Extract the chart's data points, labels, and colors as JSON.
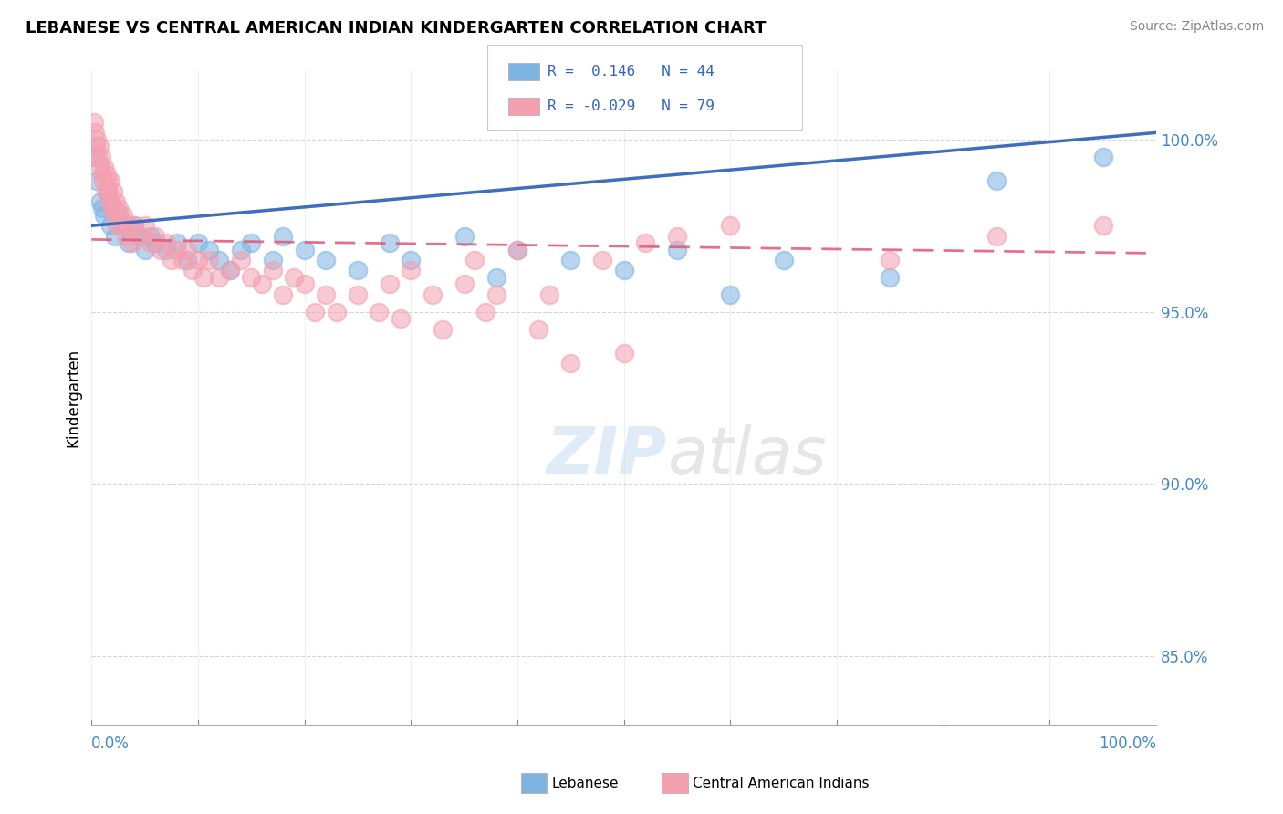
{
  "title": "LEBANESE VS CENTRAL AMERICAN INDIAN KINDERGARTEN CORRELATION CHART",
  "source": "Source: ZipAtlas.com",
  "ylabel": "Kindergarten",
  "legend_labels": [
    "Lebanese",
    "Central American Indians"
  ],
  "r_lebanese": 0.146,
  "n_lebanese": 44,
  "r_central": -0.029,
  "n_central": 79,
  "blue_color": "#7EB4E2",
  "pink_color": "#F4A0B0",
  "trend_blue_color": "#3366BB",
  "trend_pink_color": "#E05878",
  "xlim": [
    0,
    100
  ],
  "ylim": [
    83.0,
    102.0
  ],
  "y_ticks": [
    85.0,
    90.0,
    95.0,
    100.0
  ],
  "blue_trend": [
    97.5,
    100.2
  ],
  "pink_trend": [
    97.1,
    96.7
  ],
  "blue_dots": [
    [
      0.3,
      99.5
    ],
    [
      0.5,
      98.8
    ],
    [
      0.8,
      98.2
    ],
    [
      1.0,
      98.0
    ],
    [
      1.2,
      97.8
    ],
    [
      1.5,
      98.5
    ],
    [
      1.8,
      97.5
    ],
    [
      2.0,
      98.0
    ],
    [
      2.2,
      97.2
    ],
    [
      2.5,
      97.8
    ],
    [
      3.0,
      97.5
    ],
    [
      3.5,
      97.0
    ],
    [
      4.0,
      97.5
    ],
    [
      4.5,
      97.2
    ],
    [
      5.0,
      96.8
    ],
    [
      5.5,
      97.2
    ],
    [
      6.0,
      97.0
    ],
    [
      7.0,
      96.8
    ],
    [
      8.0,
      97.0
    ],
    [
      9.0,
      96.5
    ],
    [
      10.0,
      97.0
    ],
    [
      11.0,
      96.8
    ],
    [
      12.0,
      96.5
    ],
    [
      13.0,
      96.2
    ],
    [
      14.0,
      96.8
    ],
    [
      15.0,
      97.0
    ],
    [
      17.0,
      96.5
    ],
    [
      18.0,
      97.2
    ],
    [
      20.0,
      96.8
    ],
    [
      22.0,
      96.5
    ],
    [
      25.0,
      96.2
    ],
    [
      28.0,
      97.0
    ],
    [
      30.0,
      96.5
    ],
    [
      35.0,
      97.2
    ],
    [
      38.0,
      96.0
    ],
    [
      40.0,
      96.8
    ],
    [
      45.0,
      96.5
    ],
    [
      50.0,
      96.2
    ],
    [
      55.0,
      96.8
    ],
    [
      60.0,
      95.5
    ],
    [
      65.0,
      96.5
    ],
    [
      75.0,
      96.0
    ],
    [
      85.0,
      98.8
    ],
    [
      95.0,
      99.5
    ]
  ],
  "pink_dots": [
    [
      0.2,
      100.5
    ],
    [
      0.3,
      100.2
    ],
    [
      0.4,
      99.8
    ],
    [
      0.5,
      100.0
    ],
    [
      0.6,
      99.5
    ],
    [
      0.7,
      99.8
    ],
    [
      0.8,
      99.2
    ],
    [
      0.9,
      99.5
    ],
    [
      1.0,
      99.0
    ],
    [
      1.1,
      98.8
    ],
    [
      1.2,
      99.2
    ],
    [
      1.3,
      98.5
    ],
    [
      1.4,
      99.0
    ],
    [
      1.5,
      98.8
    ],
    [
      1.6,
      98.5
    ],
    [
      1.7,
      98.2
    ],
    [
      1.8,
      98.8
    ],
    [
      1.9,
      98.0
    ],
    [
      2.0,
      98.5
    ],
    [
      2.1,
      98.0
    ],
    [
      2.2,
      97.8
    ],
    [
      2.3,
      98.2
    ],
    [
      2.4,
      97.5
    ],
    [
      2.5,
      98.0
    ],
    [
      2.6,
      97.8
    ],
    [
      2.8,
      97.5
    ],
    [
      3.0,
      97.8
    ],
    [
      3.2,
      97.2
    ],
    [
      3.5,
      97.5
    ],
    [
      3.8,
      97.0
    ],
    [
      4.0,
      97.5
    ],
    [
      4.5,
      97.2
    ],
    [
      5.0,
      97.5
    ],
    [
      5.5,
      97.0
    ],
    [
      6.0,
      97.2
    ],
    [
      6.5,
      96.8
    ],
    [
      7.0,
      97.0
    ],
    [
      7.5,
      96.5
    ],
    [
      8.0,
      96.8
    ],
    [
      8.5,
      96.5
    ],
    [
      9.0,
      96.8
    ],
    [
      9.5,
      96.2
    ],
    [
      10.0,
      96.5
    ],
    [
      10.5,
      96.0
    ],
    [
      11.0,
      96.5
    ],
    [
      12.0,
      96.0
    ],
    [
      13.0,
      96.2
    ],
    [
      14.0,
      96.5
    ],
    [
      15.0,
      96.0
    ],
    [
      16.0,
      95.8
    ],
    [
      17.0,
      96.2
    ],
    [
      18.0,
      95.5
    ],
    [
      19.0,
      96.0
    ],
    [
      20.0,
      95.8
    ],
    [
      21.0,
      95.0
    ],
    [
      22.0,
      95.5
    ],
    [
      23.0,
      95.0
    ],
    [
      25.0,
      95.5
    ],
    [
      27.0,
      95.0
    ],
    [
      28.0,
      95.8
    ],
    [
      29.0,
      94.8
    ],
    [
      30.0,
      96.2
    ],
    [
      32.0,
      95.5
    ],
    [
      33.0,
      94.5
    ],
    [
      35.0,
      95.8
    ],
    [
      36.0,
      96.5
    ],
    [
      37.0,
      95.0
    ],
    [
      38.0,
      95.5
    ],
    [
      40.0,
      96.8
    ],
    [
      42.0,
      94.5
    ],
    [
      43.0,
      95.5
    ],
    [
      45.0,
      93.5
    ],
    [
      48.0,
      96.5
    ],
    [
      50.0,
      93.8
    ],
    [
      52.0,
      97.0
    ],
    [
      55.0,
      97.2
    ],
    [
      60.0,
      97.5
    ],
    [
      75.0,
      96.5
    ],
    [
      85.0,
      97.2
    ],
    [
      95.0,
      97.5
    ]
  ]
}
